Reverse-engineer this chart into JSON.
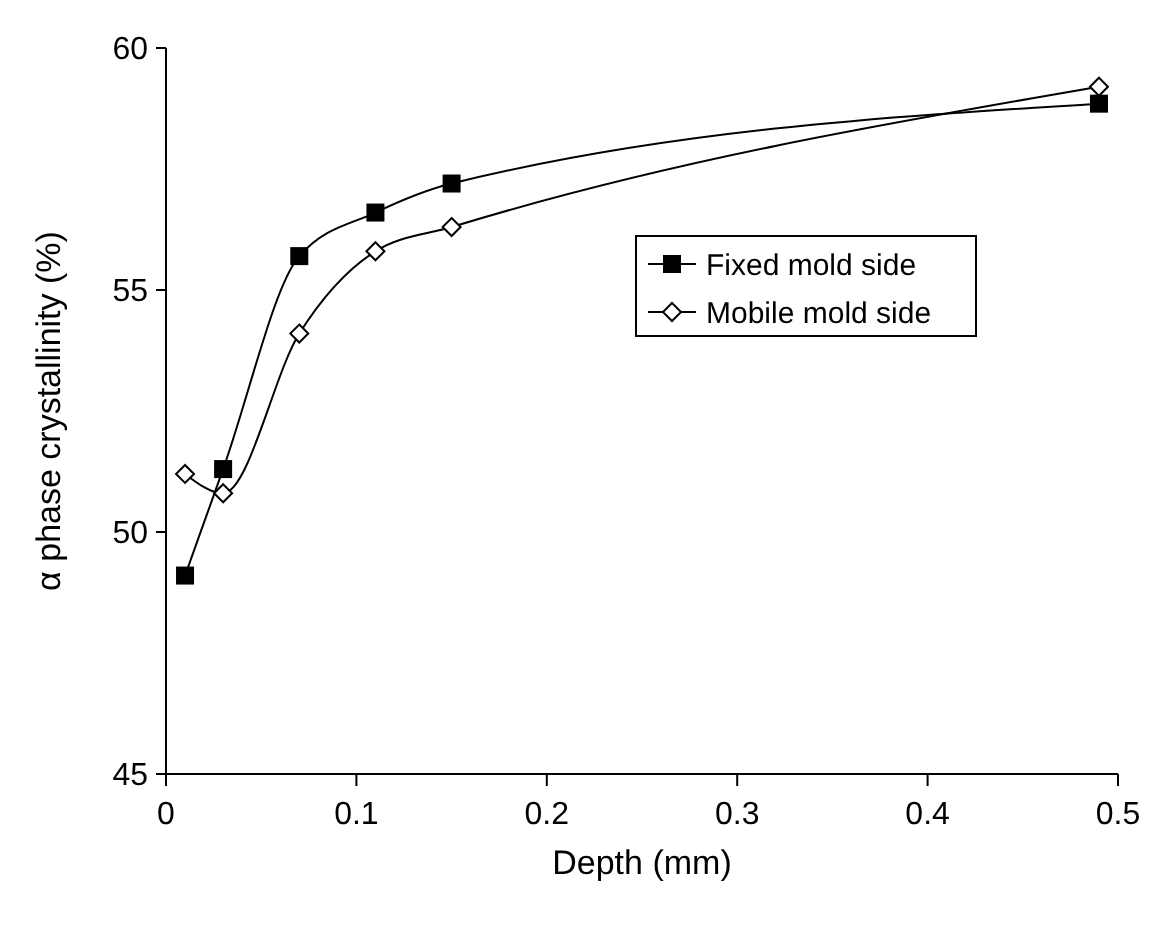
{
  "chart_data": {
    "type": "line",
    "xlabel": "Depth (mm)",
    "ylabel": "α phase crystallinity (%)",
    "xlim": [
      0,
      0.5
    ],
    "xticks": [
      0,
      0.1,
      0.2,
      0.3,
      0.4,
      0.5
    ],
    "ylim": [
      45,
      60
    ],
    "yticks": [
      45,
      50,
      55,
      60
    ],
    "grid": false,
    "legend": "right",
    "x": [
      0.01,
      0.03,
      0.07,
      0.11,
      0.15,
      0.49
    ],
    "series": [
      {
        "name": "Fixed mold side",
        "color": "#000000",
        "marker": "square",
        "values": [
          49.1,
          51.3,
          55.7,
          56.6,
          57.2,
          58.85
        ]
      },
      {
        "name": "Mobile mold side",
        "color": "#000000",
        "marker": "diamond",
        "values": [
          51.2,
          50.8,
          54.1,
          55.8,
          56.3,
          59.2
        ]
      }
    ]
  }
}
